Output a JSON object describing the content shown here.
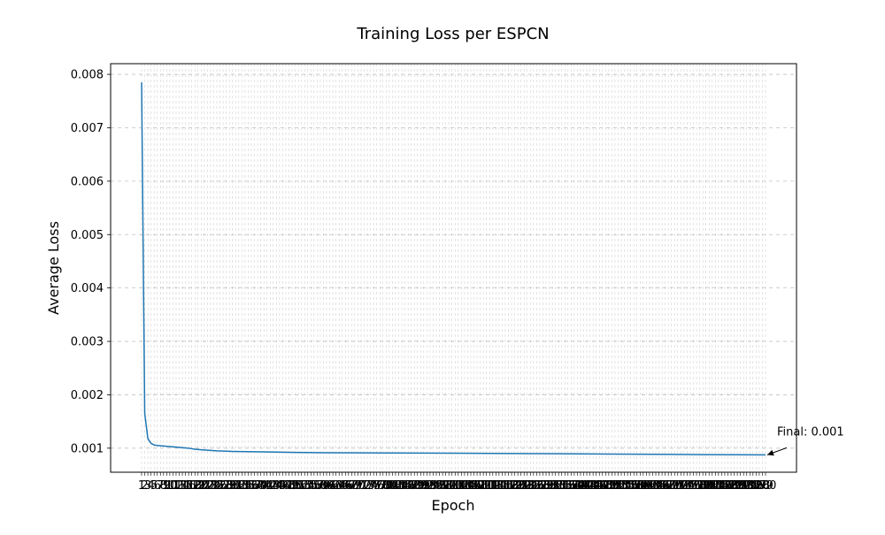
{
  "chart_data": {
    "type": "line",
    "title": "Training Loss per ESPCN",
    "xlabel": "Epoch",
    "ylabel": "Average Loss",
    "xlim": [
      1,
      200
    ],
    "ylim": [
      0.00055,
      0.0082
    ],
    "y_ticks": [
      "0.001",
      "0.002",
      "0.003",
      "0.004",
      "0.005",
      "0.006",
      "0.007",
      "0.008"
    ],
    "x_ticks": "every epoch 1-200 (labels overlap)",
    "grid": true,
    "grid_style": "dashed",
    "legend": "none",
    "line_color": "#1f77b4",
    "annotation": {
      "text": "Final: 0.001",
      "x": 200,
      "y": 0.000875
    },
    "series": [
      {
        "x": [
          1,
          2,
          3,
          4,
          5,
          6,
          8,
          10,
          12,
          14,
          16,
          18,
          20,
          25,
          30,
          40,
          50,
          60,
          80,
          100,
          120,
          150,
          180,
          200
        ],
        "y": [
          0.00785,
          0.00165,
          0.00118,
          0.00109,
          0.00106,
          0.00105,
          0.00104,
          0.00103,
          0.00102,
          0.00101,
          0.001,
          0.00098,
          0.00097,
          0.00095,
          0.00094,
          0.00093,
          0.00092,
          0.000915,
          0.00091,
          0.000905,
          0.0009,
          0.00089,
          0.00088,
          0.000875
        ]
      }
    ]
  }
}
